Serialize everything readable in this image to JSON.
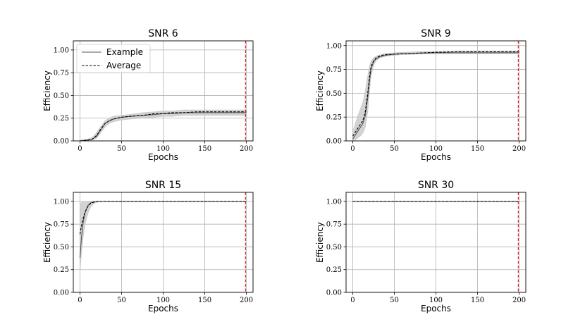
{
  "chart_data": [
    {
      "type": "line",
      "title": "SNR 6",
      "xlabel": "Epochs",
      "ylabel": "Efficiency",
      "xlim": [
        -8,
        208
      ],
      "ylim": [
        0,
        1.1
      ],
      "xticks": [
        "0",
        "50",
        "100",
        "150",
        "200"
      ],
      "xtick_values": [
        0,
        50,
        100,
        150,
        200
      ],
      "yticks": [
        "0.00",
        "0.25",
        "0.50",
        "0.75",
        "1.00"
      ],
      "ytick_values": [
        0,
        0.25,
        0.5,
        0.75,
        1.0
      ],
      "grid": true,
      "legend": {
        "placement": "top-left",
        "entries": [
          {
            "label": "Example",
            "style": "solid",
            "color": "#555555"
          },
          {
            "label": "Average",
            "style": "dashed",
            "color": "#000000"
          }
        ]
      },
      "vline": {
        "x": 199,
        "color": "#d62728",
        "style": "dashed"
      },
      "series": [
        {
          "role": "example",
          "x": [
            0,
            10,
            15,
            20,
            25,
            30,
            35,
            40,
            50,
            60,
            75,
            90,
            100,
            110,
            125,
            140,
            150,
            160,
            175,
            190,
            200
          ],
          "y": [
            0.0,
            0.01,
            0.02,
            0.05,
            0.12,
            0.19,
            0.22,
            0.24,
            0.26,
            0.27,
            0.28,
            0.29,
            0.3,
            0.3,
            0.31,
            0.31,
            0.31,
            0.31,
            0.31,
            0.31,
            0.31
          ]
        },
        {
          "role": "average",
          "x": [
            0,
            10,
            15,
            20,
            25,
            30,
            35,
            40,
            50,
            60,
            75,
            90,
            100,
            110,
            125,
            140,
            150,
            160,
            175,
            190,
            200
          ],
          "y": [
            0.0,
            0.01,
            0.02,
            0.06,
            0.13,
            0.19,
            0.22,
            0.24,
            0.26,
            0.27,
            0.28,
            0.3,
            0.3,
            0.31,
            0.31,
            0.32,
            0.32,
            0.32,
            0.32,
            0.32,
            0.32
          ]
        }
      ],
      "band": {
        "x": [
          0,
          10,
          15,
          20,
          25,
          30,
          35,
          40,
          50,
          60,
          75,
          90,
          100,
          110,
          125,
          140,
          150,
          160,
          175,
          190,
          200
        ],
        "low": [
          0.0,
          0.0,
          0.01,
          0.03,
          0.09,
          0.15,
          0.19,
          0.21,
          0.23,
          0.24,
          0.25,
          0.26,
          0.27,
          0.27,
          0.28,
          0.28,
          0.28,
          0.28,
          0.28,
          0.28,
          0.28
        ],
        "high": [
          0.01,
          0.02,
          0.04,
          0.09,
          0.16,
          0.22,
          0.25,
          0.27,
          0.28,
          0.29,
          0.31,
          0.32,
          0.33,
          0.33,
          0.34,
          0.34,
          0.34,
          0.34,
          0.34,
          0.34,
          0.34
        ]
      }
    },
    {
      "type": "line",
      "title": "SNR 9",
      "xlabel": "Epochs",
      "ylabel": "Efficiency",
      "xlim": [
        -8,
        208
      ],
      "ylim": [
        0,
        1.05
      ],
      "xticks": [
        "0",
        "50",
        "100",
        "150",
        "200"
      ],
      "xtick_values": [
        0,
        50,
        100,
        150,
        200
      ],
      "yticks": [
        "0.00",
        "0.25",
        "0.50",
        "0.75",
        "1.00"
      ],
      "ytick_values": [
        0,
        0.25,
        0.5,
        0.75,
        1.0
      ],
      "grid": true,
      "vline": {
        "x": 199,
        "color": "#d62728",
        "style": "dashed"
      },
      "series": [
        {
          "role": "example",
          "x": [
            0,
            3,
            6,
            9,
            12,
            15,
            18,
            20,
            22,
            25,
            28,
            32,
            36,
            40,
            50,
            60,
            75,
            100,
            125,
            150,
            175,
            200
          ],
          "y": [
            0.02,
            0.06,
            0.1,
            0.14,
            0.18,
            0.26,
            0.45,
            0.62,
            0.75,
            0.83,
            0.86,
            0.88,
            0.89,
            0.9,
            0.91,
            0.915,
            0.92,
            0.925,
            0.925,
            0.925,
            0.925,
            0.925
          ]
        },
        {
          "role": "average",
          "x": [
            0,
            3,
            6,
            9,
            12,
            15,
            18,
            20,
            22,
            25,
            28,
            32,
            36,
            40,
            50,
            60,
            75,
            100,
            125,
            150,
            175,
            200
          ],
          "y": [
            0.05,
            0.09,
            0.13,
            0.17,
            0.21,
            0.3,
            0.5,
            0.66,
            0.78,
            0.84,
            0.87,
            0.89,
            0.9,
            0.905,
            0.91,
            0.915,
            0.92,
            0.93,
            0.935,
            0.935,
            0.935,
            0.935
          ]
        }
      ],
      "band": {
        "x": [
          0,
          3,
          6,
          9,
          12,
          15,
          18,
          20,
          22,
          25,
          28,
          32,
          36,
          40,
          50,
          60,
          75,
          100,
          125,
          150,
          175,
          200
        ],
        "low": [
          0.0,
          0.01,
          0.03,
          0.05,
          0.08,
          0.14,
          0.3,
          0.5,
          0.68,
          0.79,
          0.84,
          0.87,
          0.88,
          0.89,
          0.9,
          0.905,
          0.91,
          0.915,
          0.915,
          0.915,
          0.915,
          0.915
        ],
        "high": [
          0.1,
          0.18,
          0.26,
          0.33,
          0.4,
          0.52,
          0.68,
          0.78,
          0.84,
          0.87,
          0.89,
          0.9,
          0.91,
          0.92,
          0.925,
          0.93,
          0.935,
          0.94,
          0.945,
          0.945,
          0.945,
          0.945
        ]
      }
    },
    {
      "type": "line",
      "title": "SNR 15",
      "xlabel": "Epochs",
      "ylabel": "Efficiency",
      "xlim": [
        -8,
        208
      ],
      "ylim": [
        0,
        1.1
      ],
      "xticks": [
        "0",
        "50",
        "100",
        "150",
        "200"
      ],
      "xtick_values": [
        0,
        50,
        100,
        150,
        200
      ],
      "yticks": [
        "0.00",
        "0.25",
        "0.50",
        "0.75",
        "1.00"
      ],
      "ytick_values": [
        0,
        0.25,
        0.5,
        0.75,
        1.0
      ],
      "grid": true,
      "vline": {
        "x": 199,
        "color": "#d62728",
        "style": "dashed"
      },
      "series": [
        {
          "role": "example",
          "x": [
            0,
            2,
            4,
            6,
            8,
            10,
            13,
            16,
            20,
            25,
            50,
            100,
            150,
            200
          ],
          "y": [
            0.38,
            0.62,
            0.78,
            0.87,
            0.92,
            0.96,
            0.985,
            0.995,
            1.0,
            1.0,
            1.0,
            1.0,
            1.0,
            1.0
          ]
        },
        {
          "role": "average",
          "x": [
            0,
            2,
            4,
            6,
            8,
            10,
            13,
            16,
            20,
            25,
            50,
            100,
            150,
            200
          ],
          "y": [
            0.64,
            0.74,
            0.82,
            0.88,
            0.92,
            0.95,
            0.98,
            0.99,
            1.0,
            1.0,
            1.0,
            1.0,
            1.0,
            1.0
          ]
        }
      ],
      "band": {
        "x": [
          0,
          2,
          4,
          6,
          8,
          10,
          13,
          16,
          20,
          25,
          50,
          100,
          150,
          200
        ],
        "low": [
          0.22,
          0.45,
          0.62,
          0.74,
          0.82,
          0.88,
          0.94,
          0.97,
          0.99,
          1.0,
          1.0,
          1.0,
          1.0,
          1.0
        ],
        "high": [
          0.97,
          0.99,
          1.0,
          1.0,
          1.0,
          1.0,
          1.0,
          1.0,
          1.0,
          1.0,
          1.0,
          1.0,
          1.0,
          1.0
        ]
      }
    },
    {
      "type": "line",
      "title": "SNR 30",
      "xlabel": "Epochs",
      "ylabel": "Efficiency",
      "xlim": [
        -8,
        208
      ],
      "ylim": [
        0,
        1.1
      ],
      "xticks": [
        "0",
        "50",
        "100",
        "150",
        "200"
      ],
      "xtick_values": [
        0,
        50,
        100,
        150,
        200
      ],
      "yticks": [
        "0.00",
        "0.25",
        "0.50",
        "0.75",
        "1.00"
      ],
      "ytick_values": [
        0,
        0.25,
        0.5,
        0.75,
        1.0
      ],
      "grid": true,
      "vline": {
        "x": 199,
        "color": "#d62728",
        "style": "dashed"
      },
      "series": [
        {
          "role": "example",
          "x": [
            0,
            50,
            100,
            150,
            200
          ],
          "y": [
            1.0,
            1.0,
            1.0,
            1.0,
            1.0
          ]
        },
        {
          "role": "average",
          "x": [
            0,
            50,
            100,
            150,
            200
          ],
          "y": [
            1.0,
            1.0,
            1.0,
            1.0,
            1.0
          ]
        }
      ],
      "band": {
        "x": [
          0,
          50,
          100,
          150,
          200
        ],
        "low": [
          1.0,
          1.0,
          1.0,
          1.0,
          1.0
        ],
        "high": [
          1.0,
          1.0,
          1.0,
          1.0,
          1.0
        ]
      }
    }
  ]
}
